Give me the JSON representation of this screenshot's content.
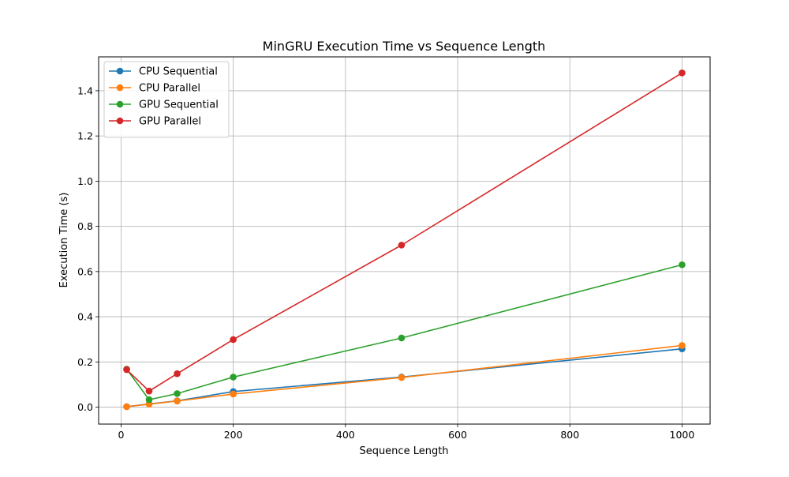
{
  "chart_data": {
    "type": "line",
    "title": "MinGRU Execution Time vs Sequence Length",
    "xlabel": "Sequence Length",
    "ylabel": "Execution Time (s)",
    "xlim": [
      -40,
      1050
    ],
    "ylim": [
      -0.075,
      1.55
    ],
    "xticks": [
      0,
      200,
      400,
      600,
      800,
      1000
    ],
    "yticks": [
      0.0,
      0.2,
      0.4,
      0.6,
      0.8,
      1.0,
      1.2,
      1.4
    ],
    "grid": true,
    "legend_position": "top-left",
    "x": [
      10,
      50,
      100,
      200,
      500,
      1000
    ],
    "series": [
      {
        "name": "CPU Sequential",
        "color": "#1f77b4",
        "values": [
          0.002,
          0.014,
          0.028,
          0.069,
          0.133,
          0.258
        ]
      },
      {
        "name": "CPU Parallel",
        "color": "#ff7f0e",
        "values": [
          0.002,
          0.013,
          0.027,
          0.058,
          0.131,
          0.273
        ]
      },
      {
        "name": "GPU Sequential",
        "color": "#2ca02c",
        "values": [
          0.168,
          0.033,
          0.06,
          0.133,
          0.306,
          0.63
        ]
      },
      {
        "name": "GPU Parallel",
        "color": "#d62728",
        "values": [
          0.166,
          0.071,
          0.148,
          0.299,
          0.717,
          1.479
        ]
      }
    ]
  }
}
